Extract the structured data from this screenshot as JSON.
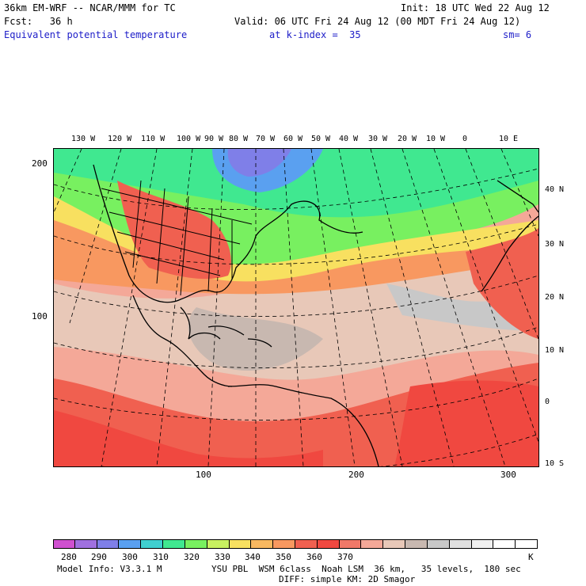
{
  "header": {
    "line1_left": "36km EM-WRF -- NCAR/MMM for TC",
    "line1_right": "Init: 18 UTC Wed 22 Aug 12",
    "line2_left": "Fcst:   36 h",
    "line2_right": "Valid: 06 UTC Fri 24 Aug 12 (00 MDT Fri 24 Aug 12)",
    "field_name": "Equivalent potential temperature",
    "field_level": "at k-index =  35",
    "smoothing": "sm= 6"
  },
  "map": {
    "top_longitude_labels": [
      "130 W",
      "120 W",
      "110 W",
      "100 W",
      "90 W",
      "80 W",
      "70 W",
      "60 W",
      "50 W",
      "40 W",
      "30 W",
      "20 W",
      "10 W",
      "0",
      "10 E"
    ],
    "right_latitude_labels": [
      "40 N",
      "30 N",
      "20 N",
      "10 N",
      "0",
      "10 S"
    ],
    "left_grid_labels": [
      "200",
      "100"
    ],
    "bottom_grid_labels": [
      "100",
      "200",
      "300"
    ]
  },
  "colorbar": {
    "colors": [
      "#d050d0",
      "#a070e0",
      "#7f7fe8",
      "#5aa0f0",
      "#40d0d0",
      "#40e890",
      "#78f060",
      "#c8f060",
      "#f8e060",
      "#f8b860",
      "#f89860",
      "#f06050",
      "#f04840",
      "#f07868",
      "#f4a898",
      "#e8c8b8",
      "#c8b8b0",
      "#c8c8c8",
      "#e0e0e0",
      "#f0f0f0",
      "#ffffff",
      "#ffffff"
    ],
    "tick_labels": [
      "280",
      "290",
      "300",
      "310",
      "320",
      "330",
      "340",
      "350",
      "360",
      "370",
      "K"
    ]
  },
  "footer": {
    "model_info": "Model Info: V3.3.1 M",
    "physics_line1": "YSU PBL  WSM 6class  Noah LSM  36 km,   35 levels,  180 sec",
    "physics_line2": "DIFF: simple KM: 2D Smagor"
  }
}
